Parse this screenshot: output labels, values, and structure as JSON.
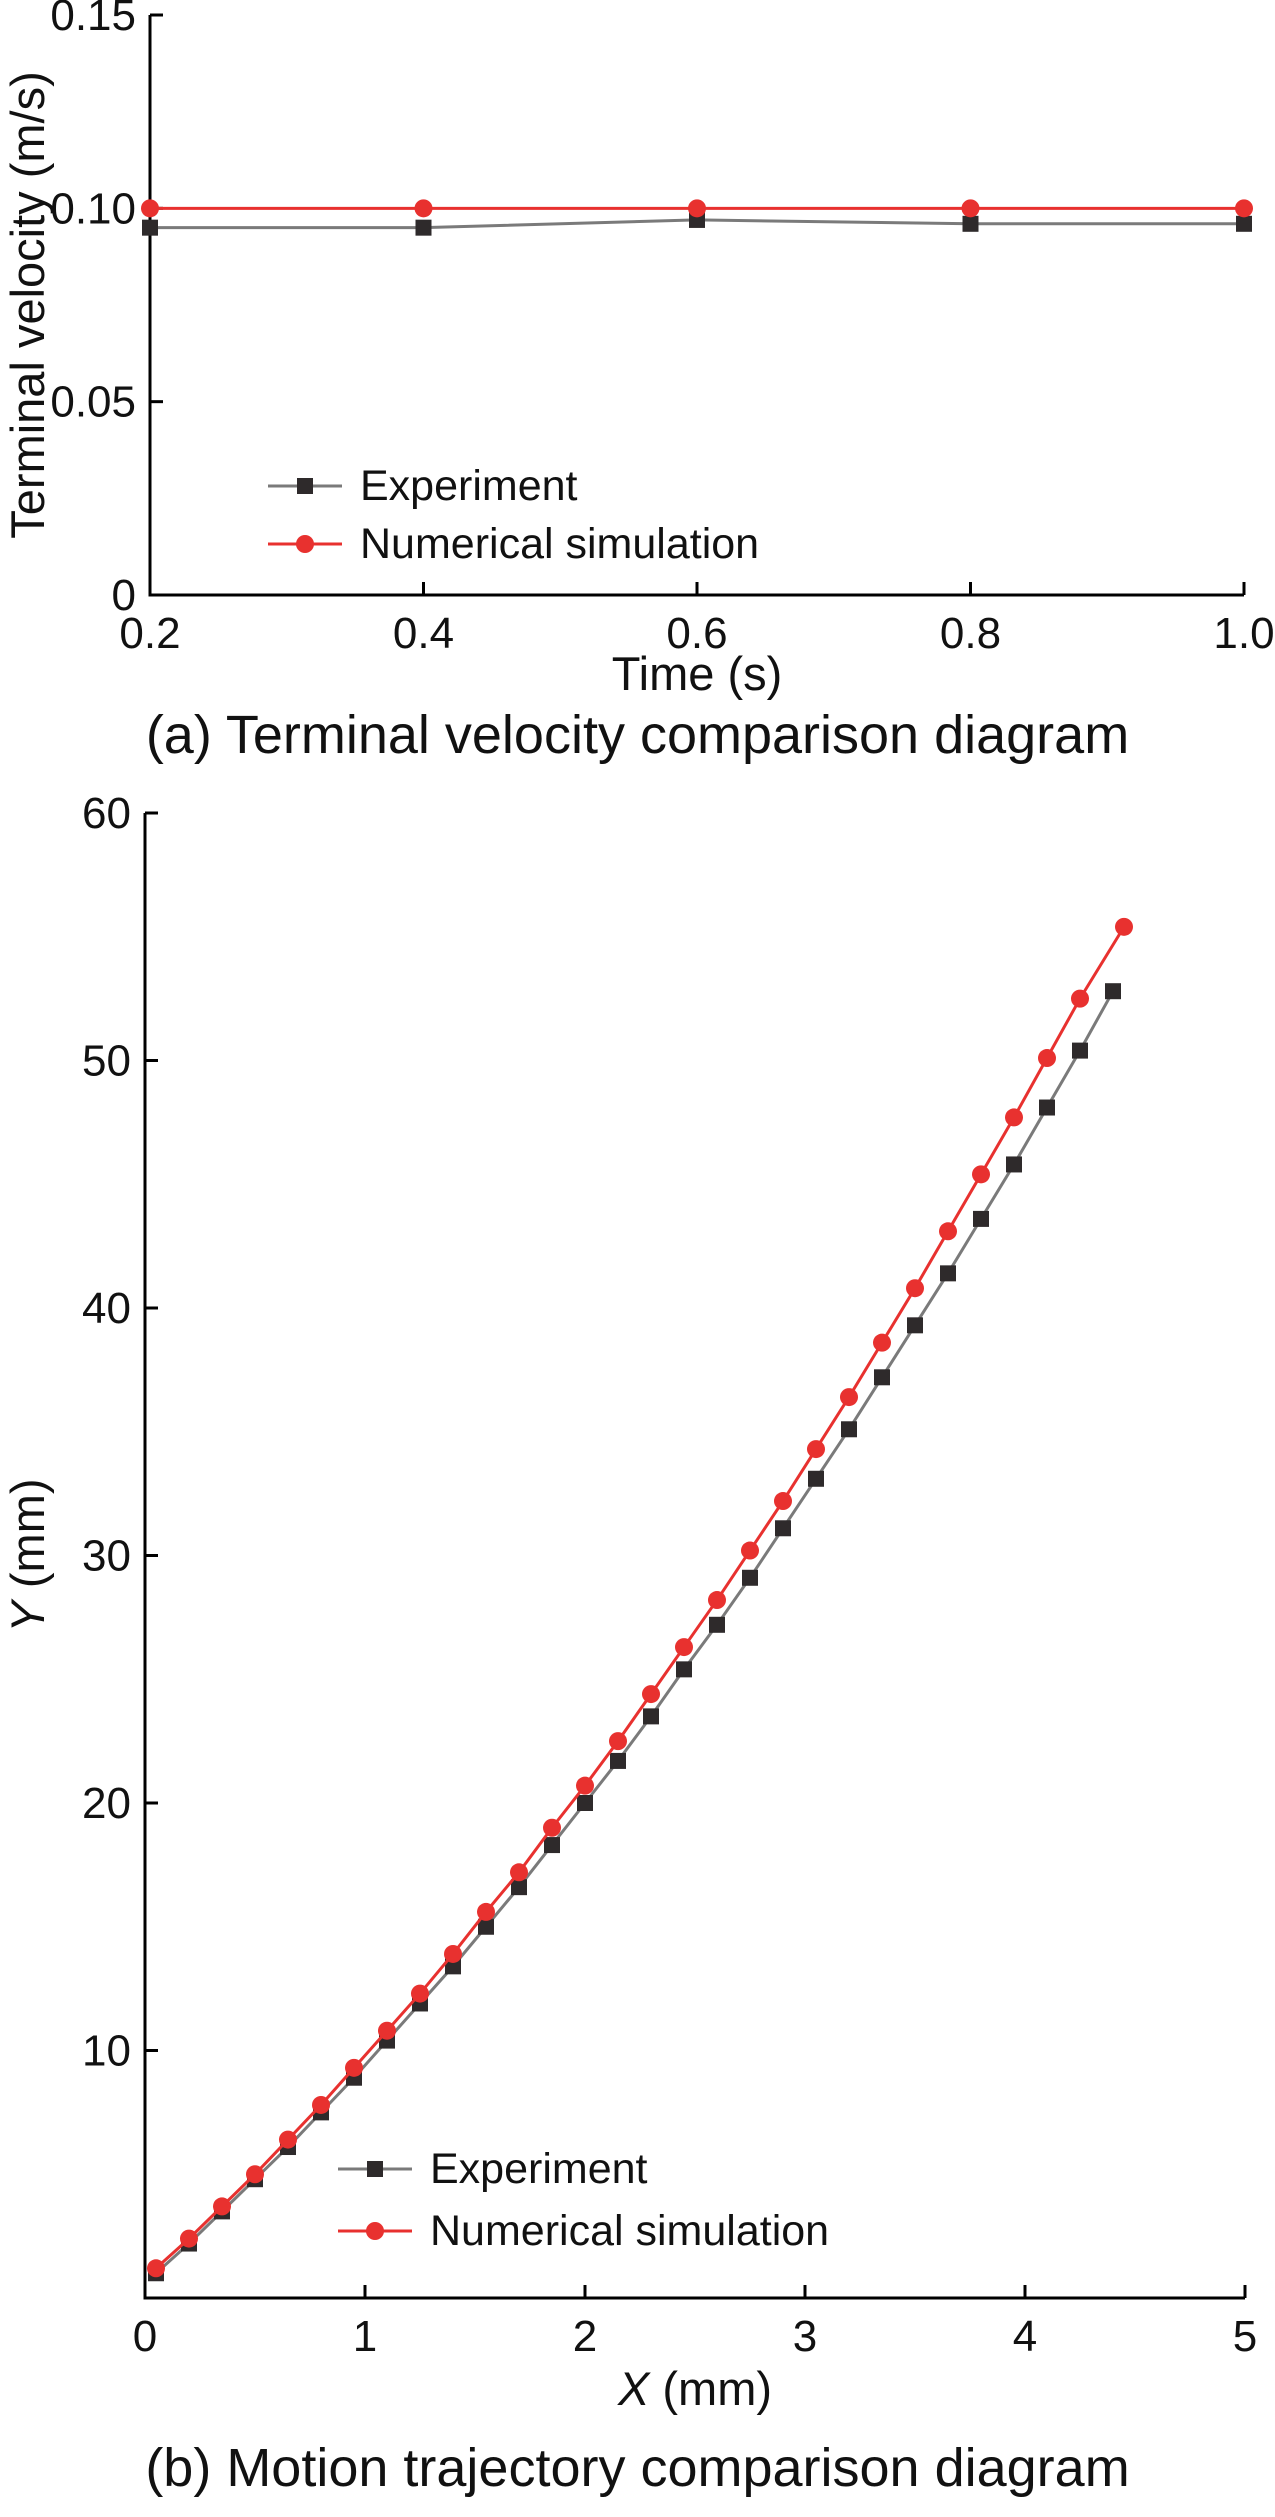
{
  "figure": {
    "background": "#ffffff",
    "axis_color": "#000000",
    "text_color": "#111111"
  },
  "chart_data": [
    {
      "id": "terminal-velocity",
      "type": "line",
      "caption": "(a) Terminal velocity comparison diagram",
      "xlabel": "Time (s)",
      "xlabel_italic": "",
      "ylabel": "Terminal velocity (m/s)",
      "ylabel_italic": "",
      "xlim": [
        0.2,
        1.0
      ],
      "ylim": [
        0,
        0.15
      ],
      "xticks": {
        "values": [
          0.2,
          0.4,
          0.6,
          0.8,
          1.0
        ],
        "labels": [
          "0.2",
          "0.4",
          "0.6",
          "0.8",
          "1.0"
        ]
      },
      "yticks": {
        "values": [
          0,
          0.05,
          0.1,
          0.15
        ],
        "labels": [
          "0",
          "0.05",
          "0.10",
          "0.15"
        ]
      },
      "grid": false,
      "legend_position": "inside-bottom-center",
      "series": [
        {
          "name": "Experiment",
          "marker": "square",
          "color": "#2e2a2b",
          "line_color": "#7a7a7a",
          "x": [
            0.2,
            0.4,
            0.6,
            0.8,
            1.0
          ],
          "y": [
            0.095,
            0.095,
            0.097,
            0.096,
            0.096
          ]
        },
        {
          "name": "Numerical simulation",
          "marker": "circle",
          "color": "#e8312f",
          "line_color": "#e8312f",
          "x": [
            0.2,
            0.4,
            0.6,
            0.8,
            1.0
          ],
          "y": [
            0.1,
            0.1,
            0.1,
            0.1,
            0.1
          ]
        }
      ]
    },
    {
      "id": "trajectory",
      "type": "line",
      "caption": "(b) Motion trajectory comparison diagram",
      "xlabel": " (mm)",
      "xlabel_italic": "X",
      "ylabel": " (mm)",
      "ylabel_italic": "Y",
      "xlim": [
        0,
        5
      ],
      "ylim": [
        0,
        60
      ],
      "xticks": {
        "values": [
          0,
          1,
          2,
          3,
          4,
          5
        ],
        "labels": [
          "0",
          "1",
          "2",
          "3",
          "4",
          "5"
        ]
      },
      "yticks": {
        "values": [
          10,
          20,
          30,
          40,
          50,
          60
        ],
        "labels": [
          "10",
          "20",
          "30",
          "40",
          "50",
          "60"
        ]
      },
      "grid": false,
      "legend_position": "inside-bottom-right",
      "series": [
        {
          "name": "Experiment",
          "marker": "square",
          "color": "#2e2a2b",
          "line_color": "#7a7a7a",
          "x": [
            0.05,
            0.2,
            0.35,
            0.5,
            0.65,
            0.8,
            0.95,
            1.1,
            1.25,
            1.4,
            1.55,
            1.7,
            1.85,
            2.0,
            2.15,
            2.3,
            2.45,
            2.6,
            2.75,
            2.9,
            3.05,
            3.2,
            3.35,
            3.5,
            3.65,
            3.8,
            3.95,
            4.1,
            4.25,
            4.4
          ],
          "y": [
            1.0,
            2.2,
            3.5,
            4.8,
            6.1,
            7.5,
            8.9,
            10.4,
            11.9,
            13.4,
            15.0,
            16.6,
            18.3,
            20.0,
            21.7,
            23.5,
            25.4,
            27.2,
            29.1,
            31.1,
            33.1,
            35.1,
            37.2,
            39.3,
            41.4,
            43.6,
            45.8,
            48.1,
            50.4,
            52.8
          ]
        },
        {
          "name": "Numerical simulation",
          "marker": "circle",
          "color": "#e8312f",
          "line_color": "#e8312f",
          "x": [
            0.05,
            0.2,
            0.35,
            0.5,
            0.65,
            0.8,
            0.95,
            1.1,
            1.25,
            1.4,
            1.55,
            1.7,
            1.85,
            2.0,
            2.15,
            2.3,
            2.45,
            2.6,
            2.75,
            2.9,
            3.05,
            3.2,
            3.35,
            3.5,
            3.65,
            3.8,
            3.95,
            4.1,
            4.25,
            4.45
          ],
          "y": [
            1.2,
            2.4,
            3.7,
            5.0,
            6.4,
            7.8,
            9.3,
            10.8,
            12.3,
            13.9,
            15.6,
            17.2,
            19.0,
            20.7,
            22.5,
            24.4,
            26.3,
            28.2,
            30.2,
            32.2,
            34.3,
            36.4,
            38.6,
            40.8,
            43.1,
            45.4,
            47.7,
            50.1,
            52.5,
            55.4
          ]
        }
      ]
    }
  ]
}
